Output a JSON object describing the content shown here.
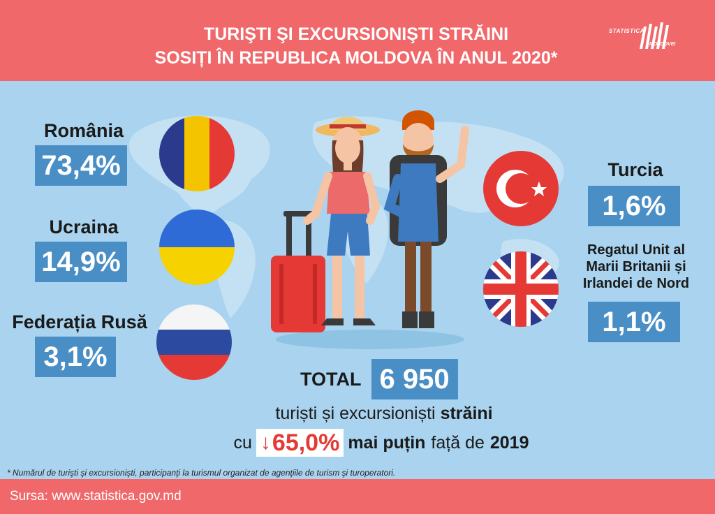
{
  "header": {
    "title_line1": "TURIŞTI ŞI EXCURSIONIŞTI  STRĂINI",
    "title_line2": "SOSIȚI ÎN REPUBLICA MOLDOVA ÎN ANUL 2020*",
    "logo_top": "STATISTICA",
    "logo_bottom": "MOLDOVEI",
    "logo_icon": "statistica-bars-logo"
  },
  "countries": [
    {
      "name": "România",
      "percent": "73,4%",
      "flag": "romania-flag"
    },
    {
      "name": "Ucraina",
      "percent": "14,9%",
      "flag": "ukraine-flag"
    },
    {
      "name": "Federația Rusă",
      "percent": "3,1%",
      "flag": "russia-flag"
    },
    {
      "name": "Turcia",
      "percent": "1,6%",
      "flag": "turkey-flag"
    },
    {
      "name_line1": "Regatul Unit al",
      "name_line2": "Marii Britanii și",
      "name_line3": "Irlandei de Nord",
      "percent": "1,1%",
      "flag": "uk-flag"
    }
  ],
  "total": {
    "label": "TOTAL",
    "value": "6 950",
    "line1_normal": "turiști și excursioniști",
    "line1_bold": "străini",
    "line2_pre": "cu",
    "line2_arrow": "↓",
    "line2_change": "65,0%",
    "line2_bold": "mai puțin",
    "line2_normal": "față de",
    "line2_year": "2019"
  },
  "footnote": "* Numărul de turişti şi excursionişti, participanţi la turismul organizat de agenţiile de turism şi turoperatori.",
  "footer": {
    "source": "Sursa: www.statistica.gov.md"
  },
  "colors": {
    "header_bg": "#f0686a",
    "main_bg": "#a9d3ee",
    "value_box": "#4a8ec6",
    "highlight": "#e53935"
  }
}
